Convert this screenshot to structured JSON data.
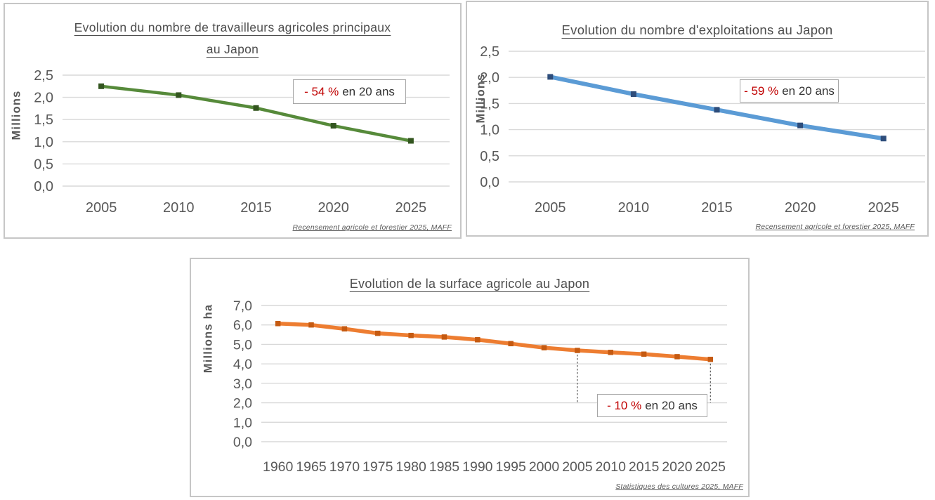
{
  "colors": {
    "grid": "#d9d9d9",
    "tick_text": "#595959",
    "title_text": "#4d4d4d",
    "panel_border": "#c6c6c6",
    "annotation_highlight": "#c00000"
  },
  "chart_data": [
    {
      "type": "line",
      "title": "Evolution du nombre de travailleurs agricoles principaux au Japon",
      "title_lines": [
        "Evolution du nombre de travailleurs agricoles principaux",
        "au Japon"
      ],
      "ylabel": "Millions",
      "xlabel": "",
      "categories": [
        "2005",
        "2010",
        "2015",
        "2020",
        "2025"
      ],
      "values": [
        2.25,
        2.05,
        1.76,
        1.36,
        1.02
      ],
      "ylim": [
        0,
        2.5
      ],
      "y_tick_labels": [
        "0,0",
        "0,5",
        "1,0",
        "1,5",
        "2,0",
        "2,5"
      ],
      "grid": true,
      "legend": "none",
      "line_color": "#568a3a",
      "marker_color": "#33551f",
      "annotation": {
        "highlight": "- 54 %",
        "rest": "en 20 ans",
        "highlight_color": "#c00000"
      },
      "source": "Recensement agricole et forestier 2025, MAFF"
    },
    {
      "type": "line",
      "title": "Evolution du nombre d'exploitations au Japon",
      "title_lines": [
        "Evolution du nombre d'exploitations au Japon"
      ],
      "ylabel": "Millions",
      "xlabel": "",
      "categories": [
        "2005",
        "2010",
        "2015",
        "2020",
        "2025"
      ],
      "values": [
        2.01,
        1.68,
        1.38,
        1.08,
        0.83
      ],
      "ylim": [
        0,
        2.5
      ],
      "y_tick_labels": [
        "0,0",
        "0,5",
        "1,0",
        "1,5",
        "2,0",
        "2,5"
      ],
      "grid": true,
      "legend": "none",
      "line_color": "#5b9bd5",
      "marker_color": "#2e4d7b",
      "annotation": {
        "highlight": "- 59 %",
        "rest": "en 20 ans",
        "highlight_color": "#c00000"
      },
      "source": "Recensement agricole et forestier 2025, MAFF"
    },
    {
      "type": "line",
      "title": "Evolution de la surface agricole au Japon",
      "title_lines": [
        "Evolution de la surface agricole au Japon"
      ],
      "ylabel": "Millions ha",
      "xlabel": "",
      "categories": [
        "1960",
        "1965",
        "1970",
        "1975",
        "1980",
        "1985",
        "1990",
        "1995",
        "2000",
        "2005",
        "2010",
        "2015",
        "2020",
        "2025"
      ],
      "values": [
        6.07,
        6.0,
        5.8,
        5.57,
        5.46,
        5.38,
        5.24,
        5.04,
        4.83,
        4.69,
        4.59,
        4.5,
        4.37,
        4.23
      ],
      "ylim": [
        0,
        7
      ],
      "y_tick_labels": [
        "0,0",
        "1,0",
        "2,0",
        "3,0",
        "4,0",
        "5,0",
        "6,0",
        "7,0"
      ],
      "grid": true,
      "legend": "none",
      "line_color": "#ed7d31",
      "marker_color": "#c55a11",
      "dashed_drop_categories": [
        "2005",
        "2025"
      ],
      "dashed_drop_to": 2.0,
      "annotation": {
        "highlight": "- 10 %",
        "rest": "en 20 ans",
        "highlight_color": "#c00000"
      },
      "source": "Statistiques des cultures 2025, MAFF"
    }
  ]
}
